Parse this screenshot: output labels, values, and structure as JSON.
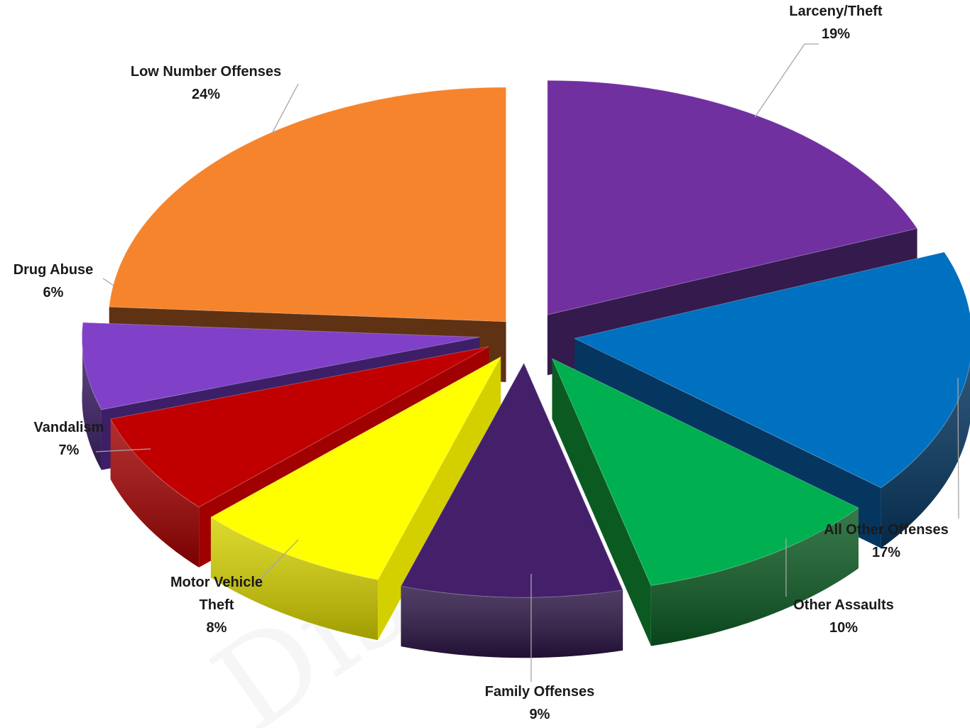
{
  "chart_data": {
    "type": "pie",
    "variant": "exploded-3d",
    "start_angle_deg": -90,
    "direction": "clockwise",
    "watermark": "Disseminate",
    "slices": [
      {
        "label": "Larceny/Theft",
        "label_lines": [
          "Larceny/Theft"
        ],
        "percent_label": "19%",
        "value": 19,
        "color": "#7030a0",
        "side_color": "#341a4d"
      },
      {
        "label": "All Other Offenses",
        "label_lines": [
          "All Other Offenses"
        ],
        "percent_label": "17%",
        "value": 17,
        "color": "#0070c0",
        "side_color": "#053660"
      },
      {
        "label": "Other Assaults",
        "label_lines": [
          "Other Assaults"
        ],
        "percent_label": "10%",
        "value": 10,
        "color": "#00b050",
        "side_color": "#0b5a22"
      },
      {
        "label": "Family Offenses",
        "label_lines": [
          "Family Offenses"
        ],
        "percent_label": "9%",
        "value": 9,
        "color": "#44206a",
        "side_color": "#2b1444"
      },
      {
        "label": "Motor Vehicle Theft",
        "label_lines": [
          "Motor Vehicle",
          "Theft"
        ],
        "percent_label": "8%",
        "value": 8,
        "color": "#ffff00",
        "side_color": "#d4d000"
      },
      {
        "label": "Vandalism",
        "label_lines": [
          "Vandalism"
        ],
        "percent_label": "7%",
        "value": 7,
        "color": "#c00000",
        "side_color": "#a00000"
      },
      {
        "label": "Drug Abuse",
        "label_lines": [
          "Drug Abuse"
        ],
        "percent_label": "6%",
        "value": 6,
        "color": "#8040c8",
        "side_color": "#3c1f66"
      },
      {
        "label": "Low Number Offenses",
        "label_lines": [
          "Low Number Offenses"
        ],
        "percent_label": "24%",
        "value": 24,
        "color": "#f5842d",
        "side_color": "#5e3213"
      }
    ]
  }
}
